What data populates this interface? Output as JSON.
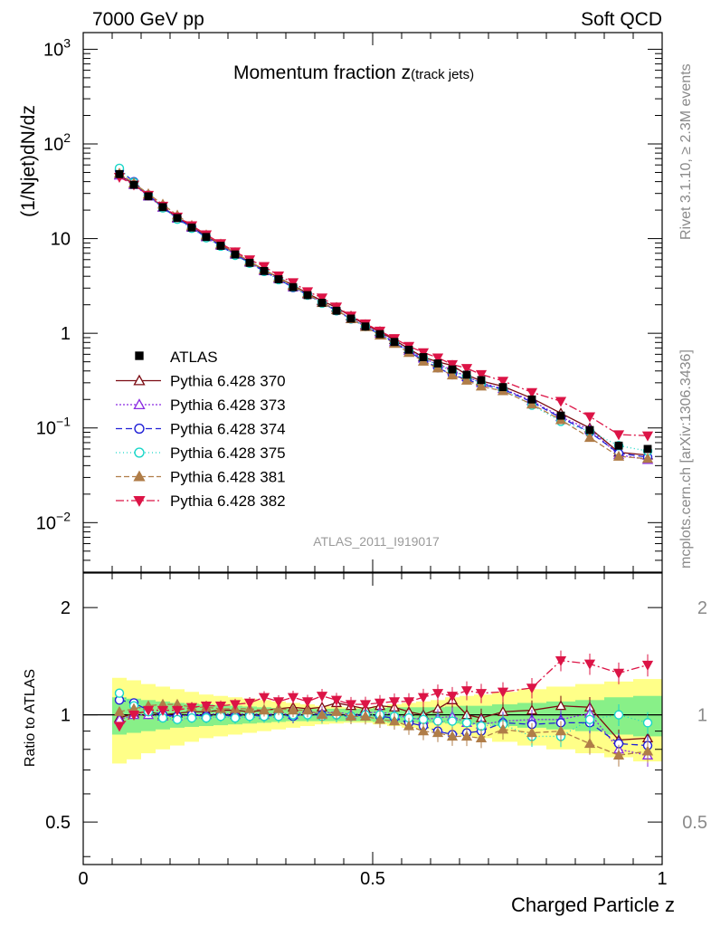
{
  "header": {
    "left": "7000 GeV pp",
    "right": "Soft QCD"
  },
  "side_labels": {
    "rivet": "Rivet 3.1.10, ≥ 2.3M events",
    "mcplots": "mcplots.cern.ch [arXiv:1306.3436]"
  },
  "chart_data": {
    "type": "scatter",
    "title_main": "Momentum fraction ",
    "title_var": "z",
    "title_sub": "(track jets)",
    "analysis_label": "ATLAS_2011_I919017",
    "xlabel": "Charged Particle z",
    "ylabel_main": "(1/Njet)dN/dz",
    "ylabel_ratio": "Ratio to ATLAS",
    "xlim": [
      0,
      1
    ],
    "ylim_main": [
      0.003,
      1500
    ],
    "ylim_ratio": [
      0.38,
      2.5
    ],
    "log_y_main": true,
    "log_y_ratio": true,
    "legend_position": "lower-left",
    "main_ticks": {
      "x": [
        {
          "v": 0,
          "label": "0"
        },
        {
          "v": 0.5,
          "label": "0.5"
        },
        {
          "v": 1,
          "label": "1"
        }
      ],
      "y": [
        {
          "v": 0.01,
          "base": "10",
          "exp": "−2"
        },
        {
          "v": 0.1,
          "base": "10",
          "exp": "−1"
        },
        {
          "v": 1,
          "base": "1",
          "exp": ""
        },
        {
          "v": 10,
          "base": "10",
          "exp": ""
        },
        {
          "v": 100,
          "base": "10",
          "exp": "2"
        },
        {
          "v": 1000,
          "base": "10",
          "exp": "3"
        }
      ]
    },
    "ratio_ticks": [
      {
        "v": 0.5,
        "label": "0.5"
      },
      {
        "v": 1,
        "label": "1"
      },
      {
        "v": 2,
        "label": "2"
      }
    ],
    "x": [
      0.0625,
      0.0875,
      0.1125,
      0.1375,
      0.1625,
      0.1875,
      0.2125,
      0.2375,
      0.2625,
      0.2875,
      0.3125,
      0.3375,
      0.3625,
      0.3875,
      0.4125,
      0.4375,
      0.4625,
      0.4875,
      0.5125,
      0.5375,
      0.5625,
      0.5875,
      0.6125,
      0.6375,
      0.6625,
      0.6875,
      0.725,
      0.775,
      0.825,
      0.875,
      0.925,
      0.975
    ],
    "data": {
      "name": "ATLAS",
      "values": [
        48,
        37,
        28,
        21.5,
        16.5,
        13.1,
        10.4,
        8.4,
        6.8,
        5.55,
        4.55,
        3.72,
        3.07,
        2.53,
        2.1,
        1.73,
        1.43,
        1.18,
        0.98,
        0.81,
        0.67,
        0.56,
        0.48,
        0.415,
        0.365,
        0.32,
        0.27,
        0.2,
        0.135,
        0.095,
        0.065,
        0.06
      ]
    },
    "uncertainty_band": {
      "inner": [
        0.12,
        0.11,
        0.1,
        0.09,
        0.08,
        0.075,
        0.07,
        0.065,
        0.06,
        0.055,
        0.05,
        0.045,
        0.04,
        0.04,
        0.04,
        0.04,
        0.04,
        0.04,
        0.045,
        0.05,
        0.05,
        0.05,
        0.05,
        0.055,
        0.06,
        0.06,
        0.07,
        0.08,
        0.09,
        0.1,
        0.12,
        0.13
      ],
      "outer": [
        0.27,
        0.25,
        0.22,
        0.2,
        0.18,
        0.16,
        0.14,
        0.13,
        0.12,
        0.11,
        0.1,
        0.09,
        0.08,
        0.07,
        0.06,
        0.055,
        0.05,
        0.05,
        0.06,
        0.07,
        0.08,
        0.09,
        0.1,
        0.12,
        0.13,
        0.14,
        0.16,
        0.18,
        0.2,
        0.22,
        0.24,
        0.26
      ]
    },
    "series": [
      {
        "name": "Pythia 6.428 370",
        "color": "#7b0b12",
        "marker": "triangle-up-open",
        "dash": "",
        "ratio": [
          0.98,
          1.01,
          1.02,
          1.0,
          1.01,
          1.02,
          1.02,
          1.03,
          1.03,
          1.02,
          1.03,
          1.04,
          1.05,
          1.04,
          1.05,
          1.08,
          1.06,
          1.04,
          1.06,
          1.05,
          1.02,
          1.0,
          1.04,
          1.1,
          1.0,
          0.98,
          1.02,
          1.03,
          1.06,
          1.05,
          0.85,
          0.86
        ]
      },
      {
        "name": "Pythia 6.428 373",
        "color": "#8a2be2",
        "marker": "triangle-up-open",
        "dash": "2,2",
        "ratio": [
          0.97,
          1.0,
          1.0,
          0.99,
          0.99,
          1.0,
          1.0,
          1.01,
          1.0,
          1.01,
          1.0,
          1.01,
          1.0,
          1.02,
          1.01,
          1.02,
          1.0,
          1.01,
          1.02,
          1.0,
          0.98,
          0.97,
          0.98,
          0.99,
          0.95,
          0.94,
          0.96,
          0.97,
          0.97,
          1.01,
          0.8,
          0.77
        ]
      },
      {
        "name": "Pythia 6.428 374",
        "color": "#1f1fd6",
        "marker": "circle-open",
        "dash": "7,4",
        "ratio": [
          1.1,
          1.08,
          1.03,
          1.0,
          0.99,
          1.0,
          0.99,
          1.0,
          0.99,
          1.0,
          0.99,
          1.0,
          0.99,
          1.01,
          1.0,
          1.0,
          0.99,
          1.0,
          0.99,
          0.98,
          0.95,
          0.93,
          0.9,
          0.88,
          0.89,
          0.9,
          0.95,
          0.94,
          0.95,
          0.95,
          0.83,
          0.82
        ]
      },
      {
        "name": "Pythia 6.428 375",
        "color": "#19d6c8",
        "marker": "circle-open",
        "dash": "1,3",
        "ratio": [
          1.15,
          1.06,
          1.02,
          0.98,
          0.97,
          0.98,
          0.98,
          0.99,
          0.98,
          0.99,
          0.99,
          0.99,
          1.0,
          1.0,
          0.99,
          1.0,
          0.99,
          1.0,
          1.0,
          0.99,
          0.98,
          0.97,
          0.96,
          0.96,
          0.95,
          0.93,
          0.94,
          0.87,
          0.87,
          0.97,
          1.0,
          0.95
        ]
      },
      {
        "name": "Pythia 6.428 381",
        "color": "#b07d48",
        "marker": "triangle-up-filled",
        "dash": "6,3",
        "ratio": [
          1.02,
          1.04,
          1.06,
          1.07,
          1.07,
          1.05,
          1.05,
          1.04,
          1.04,
          1.04,
          1.03,
          1.04,
          1.03,
          1.03,
          1.0,
          1.02,
          0.99,
          0.99,
          0.97,
          0.96,
          0.93,
          0.9,
          0.89,
          0.87,
          0.87,
          0.86,
          0.91,
          0.89,
          0.9,
          0.83,
          0.77,
          0.79
        ]
      },
      {
        "name": "Pythia 6.428 382",
        "color": "#dc1446",
        "marker": "triangle-down-filled",
        "dash": "9,3,2,3",
        "ratio": [
          0.93,
          1.0,
          1.03,
          1.03,
          1.03,
          1.05,
          1.06,
          1.06,
          1.07,
          1.08,
          1.12,
          1.09,
          1.12,
          1.09,
          1.13,
          1.1,
          1.07,
          1.07,
          1.08,
          1.09,
          1.09,
          1.12,
          1.15,
          1.13,
          1.17,
          1.15,
          1.16,
          1.19,
          1.42,
          1.39,
          1.31,
          1.38
        ]
      }
    ]
  }
}
